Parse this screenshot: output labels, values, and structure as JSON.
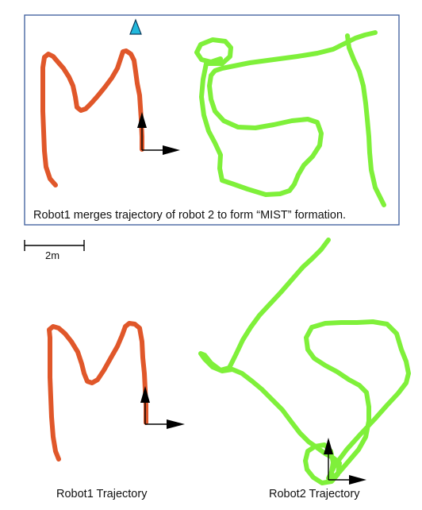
{
  "top_panel": {
    "caption": "Robot1 merges trajectory of robot 2 to form “MIST” formation.",
    "border_color": "#3a5a9a"
  },
  "scale_bar": {
    "label": "2m"
  },
  "bottom": {
    "robot1_label": "Robot1 Trajectory",
    "robot2_label": "Robot2 Trajectory"
  },
  "colors": {
    "robot1": "#e0572a",
    "robot2": "#7ff03a",
    "axes": "#000000",
    "marker": "#22b8dc"
  },
  "icons": {
    "marker": "triangle-marker-icon",
    "frame": "coordinate-frame-icon"
  }
}
